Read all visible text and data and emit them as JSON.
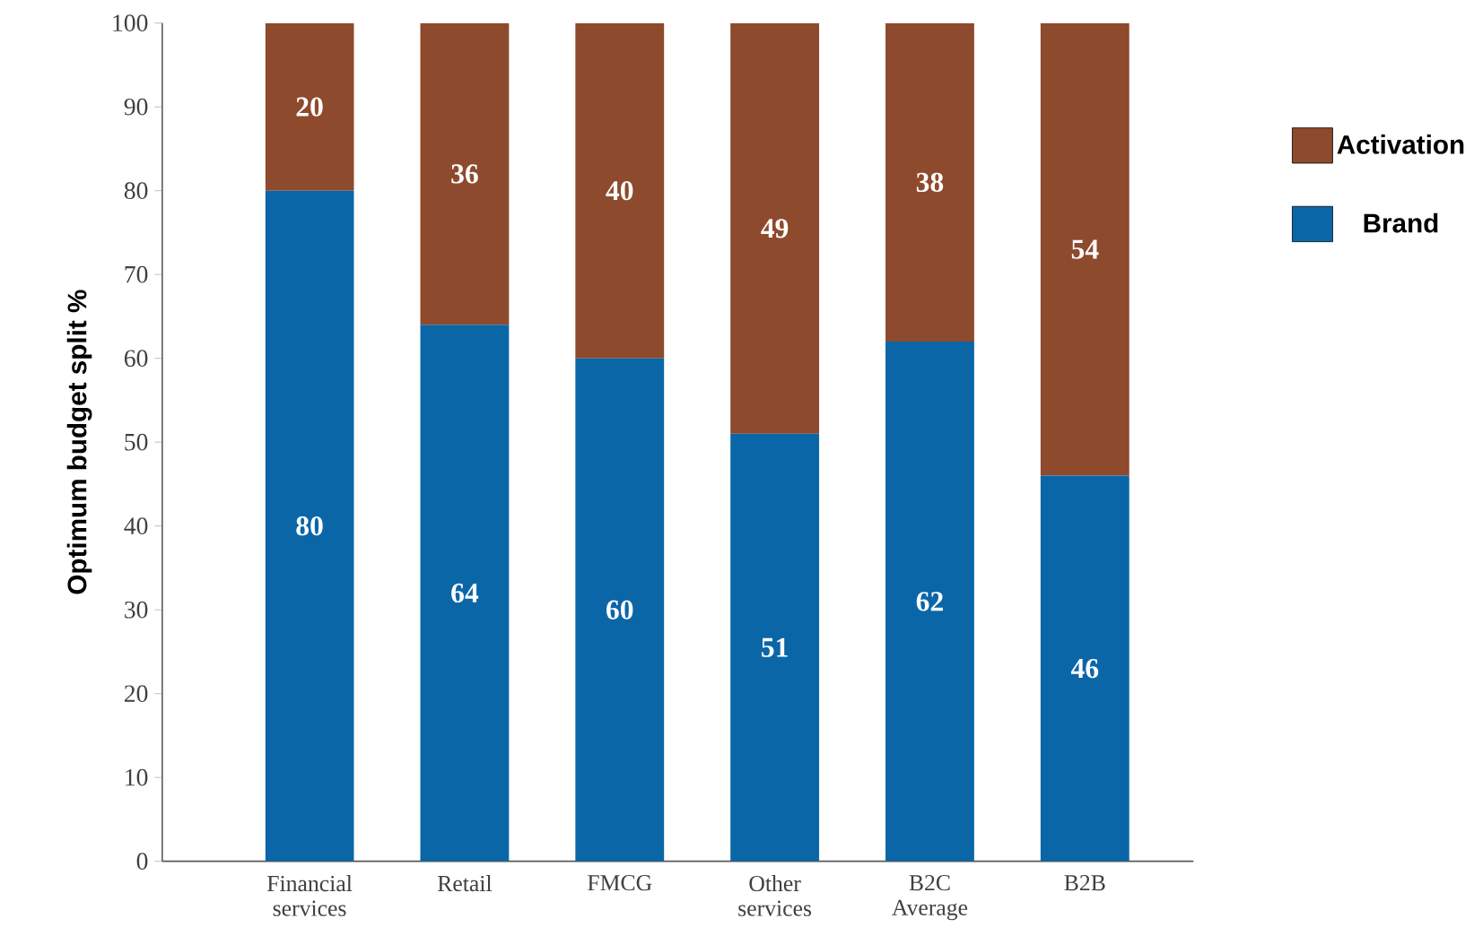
{
  "chart_data": {
    "type": "bar",
    "stacked": true,
    "ylabel": "Optimum budget split %",
    "categories": [
      "Financial services",
      "Retail",
      "FMCG",
      "Other services",
      "B2C Average",
      "B2B"
    ],
    "series": [
      {
        "name": "Brand",
        "color": "#0b66a8",
        "values": [
          80,
          64,
          60,
          51,
          62,
          46
        ]
      },
      {
        "name": "Activation",
        "color": "#8e4a2c",
        "values": [
          20,
          36,
          40,
          49,
          38,
          54
        ]
      }
    ],
    "ylim": [
      0,
      100
    ],
    "yticks": [
      0,
      10,
      20,
      30,
      40,
      50,
      60,
      70,
      80,
      90,
      100
    ],
    "data_labels": true,
    "legend": "right"
  }
}
